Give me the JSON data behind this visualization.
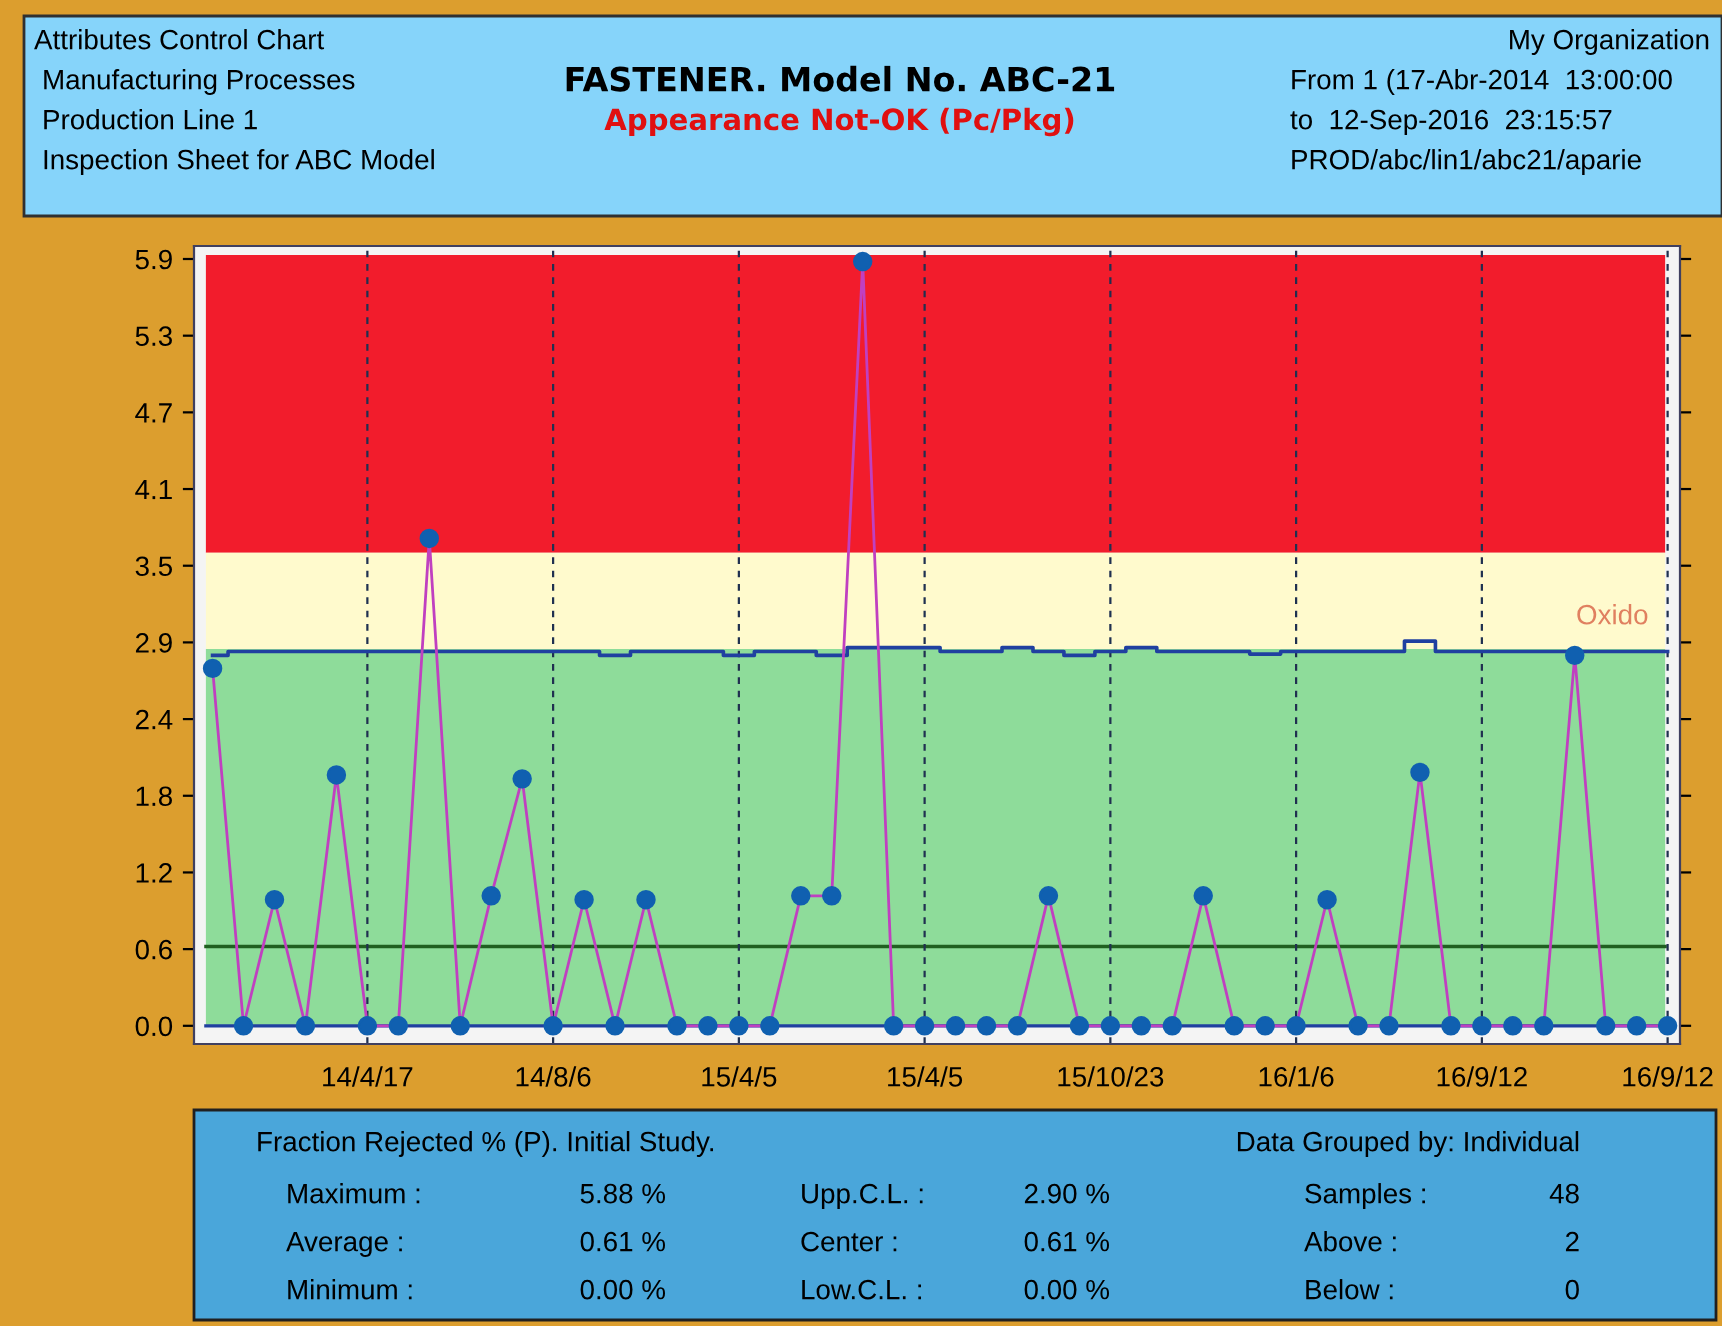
{
  "chart_data": {
    "type": "line",
    "title": "FASTENER. Model No. ABC-21",
    "subtitle": "Appearance Not-OK (Pc/Pkg)",
    "categories": [
      null,
      null,
      null,
      null,
      null,
      "14/4/17",
      null,
      null,
      null,
      null,
      null,
      "14/8/6",
      null,
      null,
      null,
      null,
      null,
      "15/4/5",
      null,
      null,
      null,
      null,
      null,
      "15/4/5",
      null,
      null,
      null,
      null,
      null,
      "15/10/23",
      null,
      null,
      null,
      null,
      null,
      "16/1/6",
      null,
      null,
      null,
      null,
      null,
      "16/9/12",
      null,
      null,
      null,
      null,
      null,
      "16/9/12"
    ],
    "series": [
      {
        "type": "step",
        "color": "#2040a0",
        "marker": "none",
        "values": [
          2.85,
          2.88,
          2.88,
          2.88,
          2.88,
          2.88,
          2.88,
          2.88,
          2.88,
          2.88,
          2.88,
          2.88,
          2.88,
          2.85,
          2.88,
          2.88,
          2.88,
          2.85,
          2.88,
          2.88,
          2.85,
          2.91,
          2.91,
          2.91,
          2.88,
          2.88,
          2.91,
          2.88,
          2.85,
          2.88,
          2.91,
          2.88,
          2.88,
          2.88,
          2.86,
          2.88,
          2.88,
          2.88,
          2.88,
          2.96,
          2.88,
          2.88,
          2.88,
          2.88,
          2.88,
          2.88,
          2.88,
          2.88
        ]
      },
      {
        "color": "#c040c0",
        "colors": [
          "#1060b0",
          "#1060b0",
          "#1060b0",
          "#1060b0",
          "#1060b0",
          "#1060b0",
          "#1060b0",
          "#1060b0",
          "#1060b0",
          "#1060b0",
          "#1060b0",
          "#1060b0",
          "#1060b0",
          "#1060b0",
          "#1060b0",
          "#1060b0",
          "#1060b0",
          "#1060b0",
          "#1060b0",
          "#1060b0",
          "#1060b0",
          "#1060b0",
          "#1060b0",
          "#1060b0",
          "#1060b0",
          "#1060b0",
          "#1060b0",
          "#1060b0",
          "#1060b0",
          "#1060b0",
          "#1060b0",
          "#1060b0",
          "#1060b0",
          "#1060b0",
          "#1060b0",
          "#1060b0",
          "#1060b0",
          "#1060b0",
          "#1060b0",
          "#1060b0",
          "#1060b0",
          "#1060b0",
          "#1060b0",
          "#1060b0",
          "#1060b0",
          "#1060b0",
          "#1060b0",
          "#1060b0"
        ],
        "values": [
          2.75,
          0,
          0.97,
          0,
          1.93,
          0,
          0,
          3.75,
          0,
          1.0,
          1.9,
          0,
          0.97,
          0,
          0.97,
          0,
          0,
          0,
          0,
          1.0,
          1.0,
          5.88,
          0,
          0,
          0,
          0,
          0,
          1.0,
          0,
          0,
          0,
          0,
          1.0,
          0,
          0,
          0,
          0.97,
          0,
          0,
          1.95,
          0,
          0,
          0,
          0,
          2.85,
          0,
          0,
          0
        ]
      }
    ],
    "ylim": [
      -0.14,
      6.0
    ],
    "yticks": [
      {
        "value": 0,
        "label": "0.0"
      },
      {
        "value": 0.59,
        "label": "0.6"
      },
      {
        "value": 1.18,
        "label": "1.2"
      },
      {
        "value": 1.77,
        "label": "1.8"
      },
      {
        "value": 2.36,
        "label": "2.4"
      },
      {
        "value": 2.95,
        "label": "2.9"
      },
      {
        "value": 3.54,
        "label": "3.5"
      },
      {
        "value": 4.13,
        "label": "4.1"
      },
      {
        "value": 4.72,
        "label": "4.7"
      },
      {
        "value": 5.31,
        "label": "5.3"
      },
      {
        "value": 5.9,
        "label": "5.9"
      }
    ],
    "bands": [
      {
        "axis": "y",
        "from": 3.64,
        "to": 5.93,
        "color": "#f21c2c"
      },
      {
        "axis": "y",
        "from": 2.9,
        "to": 3.64,
        "color": "#fffacd"
      },
      {
        "axis": "y",
        "from": 0,
        "to": 2.9,
        "color": "#8edc9a"
      }
    ],
    "ref_lines": [
      {
        "axis": "y",
        "value": 0.61,
        "color": "#206020"
      },
      {
        "axis": "y",
        "value": 0,
        "color": "#2040a0"
      }
    ],
    "grid": "x",
    "marker": "circle",
    "line_style": "solid",
    "legend": false,
    "annotations": [
      "Attributes Control Chart",
      "Manufacturing Processes",
      "Production Line 1",
      "Inspection Sheet for ABC Model",
      "My Organization",
      "From 1 (17-Abr-2014  13:00:00",
      "to  12-Sep-2016  23:15:57",
      "PROD/abc/lin1/abc21/aparie",
      "Fraction Rejected % (P). Initial Study.",
      "Data Grouped by: Individual",
      "Maximum :",
      "5.88 %",
      "Upp.C.L. :",
      "2.90 %",
      "Samples :",
      "48",
      "Average :",
      "0.61 %",
      "Center :",
      "0.61 %",
      "Above :",
      "2",
      "Minimum :",
      "0.00 %",
      "Low.C.L. :",
      "0.00 %",
      "Below :",
      "0",
      "Oxido"
    ]
  }
}
